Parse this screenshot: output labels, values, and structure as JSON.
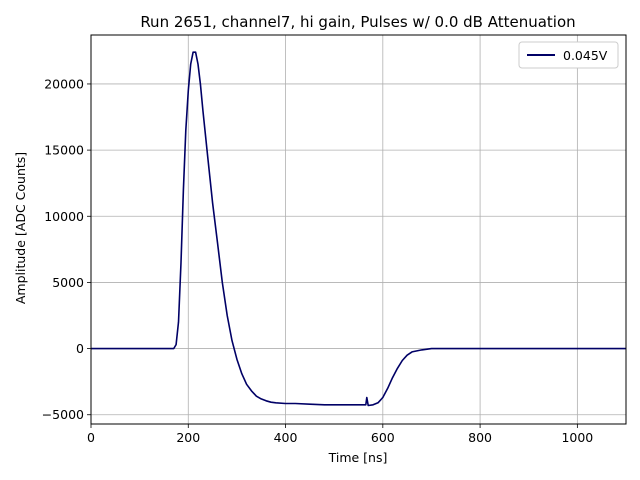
{
  "chart_data": {
    "type": "line",
    "title": "Run 2651, channel7, hi gain, Pulses w/ 0.0 dB Attenuation",
    "xlabel": "Time [ns]",
    "ylabel": "Amplitude [ADC Counts]",
    "xlim": [
      0,
      1100
    ],
    "ylim": [
      -5700,
      23700
    ],
    "xticks": [
      0,
      200,
      400,
      600,
      800,
      1000
    ],
    "yticks": [
      -5000,
      0,
      5000,
      10000,
      15000,
      20000
    ],
    "xtick_labels": [
      "0",
      "200",
      "400",
      "600",
      "800",
      "1000"
    ],
    "ytick_labels": [
      "−5000",
      "0",
      "5000",
      "10000",
      "15000",
      "20000"
    ],
    "grid": true,
    "legend_position": "top-right",
    "series": [
      {
        "name": "0.045V",
        "color": "#000066",
        "x": [
          0,
          50,
          100,
          150,
          170,
          175,
          180,
          185,
          190,
          195,
          200,
          205,
          210,
          215,
          220,
          225,
          230,
          240,
          250,
          260,
          270,
          280,
          290,
          300,
          310,
          320,
          330,
          340,
          350,
          360,
          370,
          380,
          400,
          420,
          450,
          480,
          500,
          520,
          540,
          560,
          565,
          567,
          570,
          580,
          590,
          600,
          610,
          620,
          630,
          640,
          650,
          660,
          680,
          700,
          750,
          800,
          850,
          900,
          950,
          1000,
          1050,
          1100
        ],
        "y": [
          0,
          0,
          0,
          0,
          0,
          300,
          2000,
          6500,
          12000,
          16500,
          19500,
          21500,
          22400,
          22400,
          21500,
          20000,
          18000,
          14500,
          11000,
          8000,
          5000,
          2500,
          600,
          -800,
          -1900,
          -2700,
          -3200,
          -3600,
          -3800,
          -3950,
          -4050,
          -4100,
          -4150,
          -4150,
          -4200,
          -4250,
          -4250,
          -4250,
          -4250,
          -4250,
          -4250,
          -3700,
          -4300,
          -4250,
          -4100,
          -3700,
          -3000,
          -2200,
          -1500,
          -900,
          -500,
          -250,
          -100,
          0,
          0,
          0,
          0,
          0,
          0,
          0,
          0,
          0
        ]
      }
    ]
  }
}
